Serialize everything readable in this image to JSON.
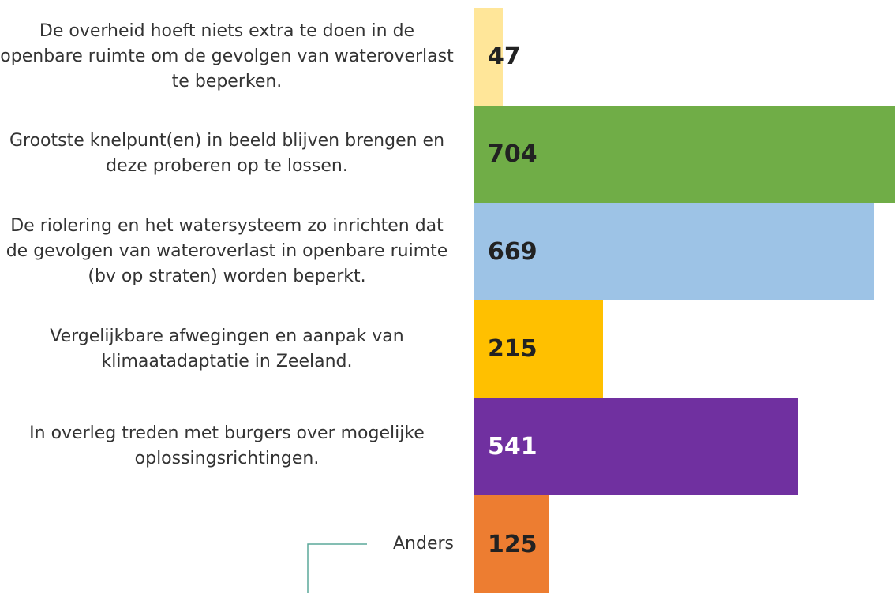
{
  "chart_data": {
    "type": "barh",
    "categories": [
      "De overheid hoeft niets extra te doen in de openbare ruimte om de gevolgen van wateroverlast te beperken.",
      "Grootste knelpunt(en) in beeld blijven brengen en deze proberen op te lossen.",
      "De riolering en het watersysteem zo inrichten dat de gevolgen van wateroverlast in openbare ruimte (bv op straten) worden beperkt.",
      "Vergelijkbare afwegingen en aanpak van klimaatadaptatie in Zeeland.",
      "In overleg treden met burgers over mogelijke oplossingsrichtingen.",
      "Anders"
    ],
    "values": [
      47,
      704,
      669,
      215,
      541,
      125
    ],
    "colors": [
      "#ffe699",
      "#70ad47",
      "#9dc3e6",
      "#ffc000",
      "#7030a0",
      "#ed7d31"
    ]
  }
}
